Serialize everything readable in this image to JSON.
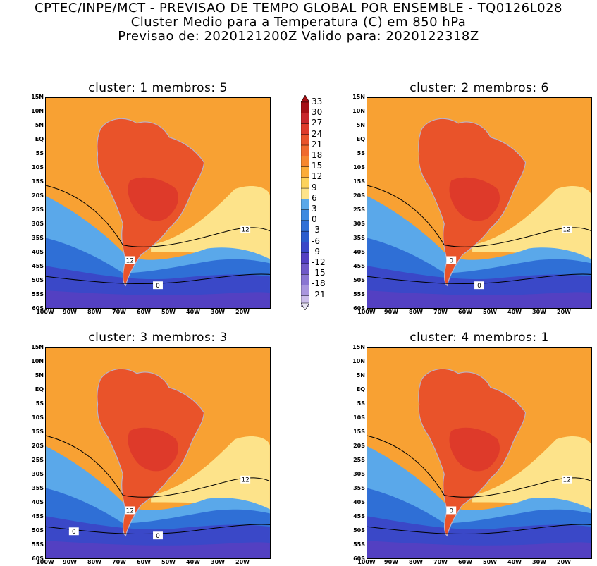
{
  "header": {
    "line1": "CPTEC/INPE/MCT - PREVISAO DE TEMPO GLOBAL POR ENSEMBLE - TQ0126L028",
    "line2": "Cluster Medio para a Temperatura (C) em 850 hPa",
    "line3": "Previsao de: 2020121200Z   Valido para: 2020122318Z"
  },
  "panels": [
    {
      "title": "cluster: 1   membros: 5",
      "contours": [
        "12",
        "12",
        "0"
      ]
    },
    {
      "title": "cluster: 2   membros: 6",
      "contours": [
        "12",
        "0",
        "0"
      ]
    },
    {
      "title": "cluster: 3   membros: 3",
      "contours": [
        "12",
        "12",
        "0",
        "0"
      ]
    },
    {
      "title": "cluster: 4   membros: 1",
      "contours": [
        "12",
        "0"
      ]
    }
  ],
  "lat_labels": [
    "15N",
    "10N",
    "5N",
    "EQ",
    "5S",
    "10S",
    "15S",
    "20S",
    "25S",
    "30S",
    "35S",
    "40S",
    "45S",
    "50S",
    "55S",
    "60S"
  ],
  "lon_labels": [
    "100W",
    "90W",
    "80W",
    "70W",
    "60W",
    "50W",
    "40W",
    "30W",
    "20W"
  ],
  "colorbar": {
    "labels": [
      "33",
      "30",
      "27",
      "24",
      "21",
      "18",
      "15",
      "12",
      "9",
      "6",
      "3",
      "0",
      "-3",
      "-6",
      "-9",
      "-12",
      "-15",
      "-18",
      "-21"
    ],
    "colors": [
      "#a50f15",
      "#c8262b",
      "#de3a2a",
      "#e9532a",
      "#f06a2d",
      "#f6872f",
      "#fbac39",
      "#fdd35c",
      "#fde38a",
      "#5aa8ea",
      "#3d8ae0",
      "#2f6fd6",
      "#2a5ccd",
      "#3a48c8",
      "#5340c2",
      "#6f59c8",
      "#8a76d2",
      "#a996de",
      "#cbbdea"
    ]
  },
  "colors": {
    "ocean_warm": "#f8a133",
    "land_hot": "#e9532a",
    "land_hotter": "#de3a2a",
    "cool_band": "#fde38a",
    "cold_1": "#5aa8ea",
    "cold_2": "#2f6fd6",
    "cold_3": "#3a48c8",
    "cold_4": "#5340c2"
  }
}
